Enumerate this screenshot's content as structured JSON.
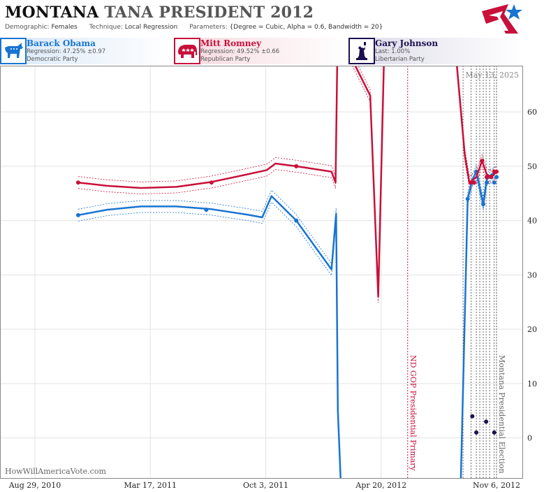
{
  "header": {
    "state": "MONTANA",
    "title_rest": "TANA PRESIDENT 2012",
    "demographic_label": "Demographic:",
    "demographic": "Females",
    "technique_label": "Technique:",
    "technique": "Local Regression",
    "parameters_label": "Parameters:",
    "parameters": "{Degree = Cubic, Alpha = 0.6, Bandwidth = 20}"
  },
  "candidates": [
    {
      "name": "Barack Obama",
      "stat": "Regression: 47.25% ±0.97",
      "party": "Democratic Party",
      "color": "#1874d2",
      "icon": "donkey-icon"
    },
    {
      "name": "Mitt Romney",
      "stat": "Regression: 49.52% ±0.66",
      "party": "Republican Party",
      "color": "#c8103a",
      "icon": "elephant-icon"
    },
    {
      "name": "Gary Johnson",
      "stat": "Last: 1.00%",
      "party": "Libertarian Party",
      "color": "#1c1050",
      "icon": "liberty-icon"
    }
  ],
  "date_stamp": "May 13, 2025",
  "watermark": "HowWillAmericaVote.com",
  "chart_data": {
    "type": "line",
    "x_ticks": [
      {
        "date": "2010-08-29",
        "label": "Aug 29, 2010"
      },
      {
        "date": "2011-03-17",
        "label": "Mar 17, 2011"
      },
      {
        "date": "2011-10-03",
        "label": "Oct 3, 2011"
      },
      {
        "date": "2012-04-20",
        "label": "Apr 20, 2012"
      },
      {
        "date": "2012-11-06",
        "label": "Nov 6, 2012"
      }
    ],
    "y_ticks": [
      0,
      10,
      20,
      30,
      40,
      50,
      60
    ],
    "ylim": [
      -7.5,
      68.5
    ],
    "grid": true,
    "annotations": [
      {
        "date": "2012-06-05",
        "text": "ND GOP Presidential Primary",
        "color": "#c8103a"
      },
      {
        "date": "2012-11-06",
        "text": "Montana Presidential Election",
        "color": "#666666"
      }
    ],
    "poll_dates": [
      "2012-09-09",
      "2012-09-23",
      "2012-10-02",
      "2012-10-08",
      "2012-10-14",
      "2012-10-19",
      "2012-10-25",
      "2012-11-02",
      "2012-11-06"
    ],
    "series": [
      {
        "name": "Barack Obama",
        "color": "#1874d2",
        "line": [
          [
            "2010-11-12",
            41.0
          ],
          [
            "2011-01-01",
            42.0
          ],
          [
            "2011-03-01",
            42.6
          ],
          [
            "2011-05-01",
            42.6
          ],
          [
            "2011-07-01",
            42.1
          ],
          [
            "2011-09-01",
            41.1
          ],
          [
            "2011-09-27",
            40.6
          ],
          [
            "2011-10-13",
            44.5
          ],
          [
            "2011-11-25",
            40.0
          ],
          [
            "2012-01-25",
            31.0
          ],
          [
            "2012-02-02",
            41.2
          ],
          [
            "2012-02-05",
            5.0
          ],
          [
            "2012-02-10",
            -8.0
          ]
        ],
        "line2": [
          [
            "2012-09-05",
            -8.0
          ],
          [
            "2012-09-17",
            44.0
          ],
          [
            "2012-09-25",
            47.5
          ],
          [
            "2012-10-02",
            49.0
          ],
          [
            "2012-10-14",
            43.0
          ],
          [
            "2012-10-20",
            47.5
          ],
          [
            "2012-10-28",
            48.5
          ],
          [
            "2012-11-06",
            48.8
          ]
        ],
        "points": [
          [
            "2010-11-12",
            41.0
          ],
          [
            "2011-06-22",
            42.0
          ],
          [
            "2011-11-25",
            40.0
          ],
          [
            "2012-09-17",
            44.0
          ],
          [
            "2012-09-25",
            47.0
          ],
          [
            "2012-10-02",
            49.0
          ],
          [
            "2012-10-14",
            43.0
          ],
          [
            "2012-10-20",
            47.0
          ],
          [
            "2012-10-28",
            48.0
          ],
          [
            "2012-11-02",
            47.0
          ],
          [
            "2012-11-06",
            48.0
          ]
        ]
      },
      {
        "name": "Mitt Romney",
        "color": "#c8103a",
        "line": [
          [
            "2010-11-12",
            47.0
          ],
          [
            "2011-01-01",
            46.4
          ],
          [
            "2011-03-01",
            46.0
          ],
          [
            "2011-05-01",
            46.2
          ],
          [
            "2011-07-01",
            47.1
          ],
          [
            "2011-09-01",
            48.5
          ],
          [
            "2011-10-05",
            49.3
          ],
          [
            "2011-10-20",
            50.5
          ],
          [
            "2011-11-25",
            50.0
          ],
          [
            "2012-01-25",
            49.0
          ],
          [
            "2012-02-01",
            47.0
          ],
          [
            "2012-02-04",
            70.0
          ]
        ],
        "line2": [
          [
            "2012-02-28",
            70.0
          ],
          [
            "2012-04-01",
            63.0
          ],
          [
            "2012-04-15",
            26.0
          ],
          [
            "2012-04-25",
            70.0
          ]
        ],
        "line3": [
          [
            "2012-08-28",
            70.0
          ],
          [
            "2012-09-12",
            52.0
          ],
          [
            "2012-09-20",
            47.0
          ],
          [
            "2012-10-02",
            48.0
          ],
          [
            "2012-10-12",
            51.0
          ],
          [
            "2012-10-20",
            48.5
          ],
          [
            "2012-10-28",
            48.0
          ],
          [
            "2012-11-06",
            49.0
          ]
        ],
        "points": [
          [
            "2010-11-12",
            47.0
          ],
          [
            "2011-07-01",
            47.0
          ],
          [
            "2011-11-25",
            50.0
          ],
          [
            "2012-09-22",
            47.0
          ],
          [
            "2012-09-28",
            47.0
          ],
          [
            "2012-10-12",
            51.0
          ],
          [
            "2012-10-20",
            48.0
          ],
          [
            "2012-10-28",
            48.0
          ],
          [
            "2012-11-02",
            49.0
          ],
          [
            "2012-11-06",
            49.0
          ]
        ]
      },
      {
        "name": "Gary Johnson",
        "color": "#1c1050",
        "points": [
          [
            "2012-09-25",
            4.0
          ],
          [
            "2012-10-02",
            1.0
          ],
          [
            "2012-10-19",
            3.0
          ],
          [
            "2012-11-02",
            1.0
          ]
        ]
      }
    ]
  }
}
